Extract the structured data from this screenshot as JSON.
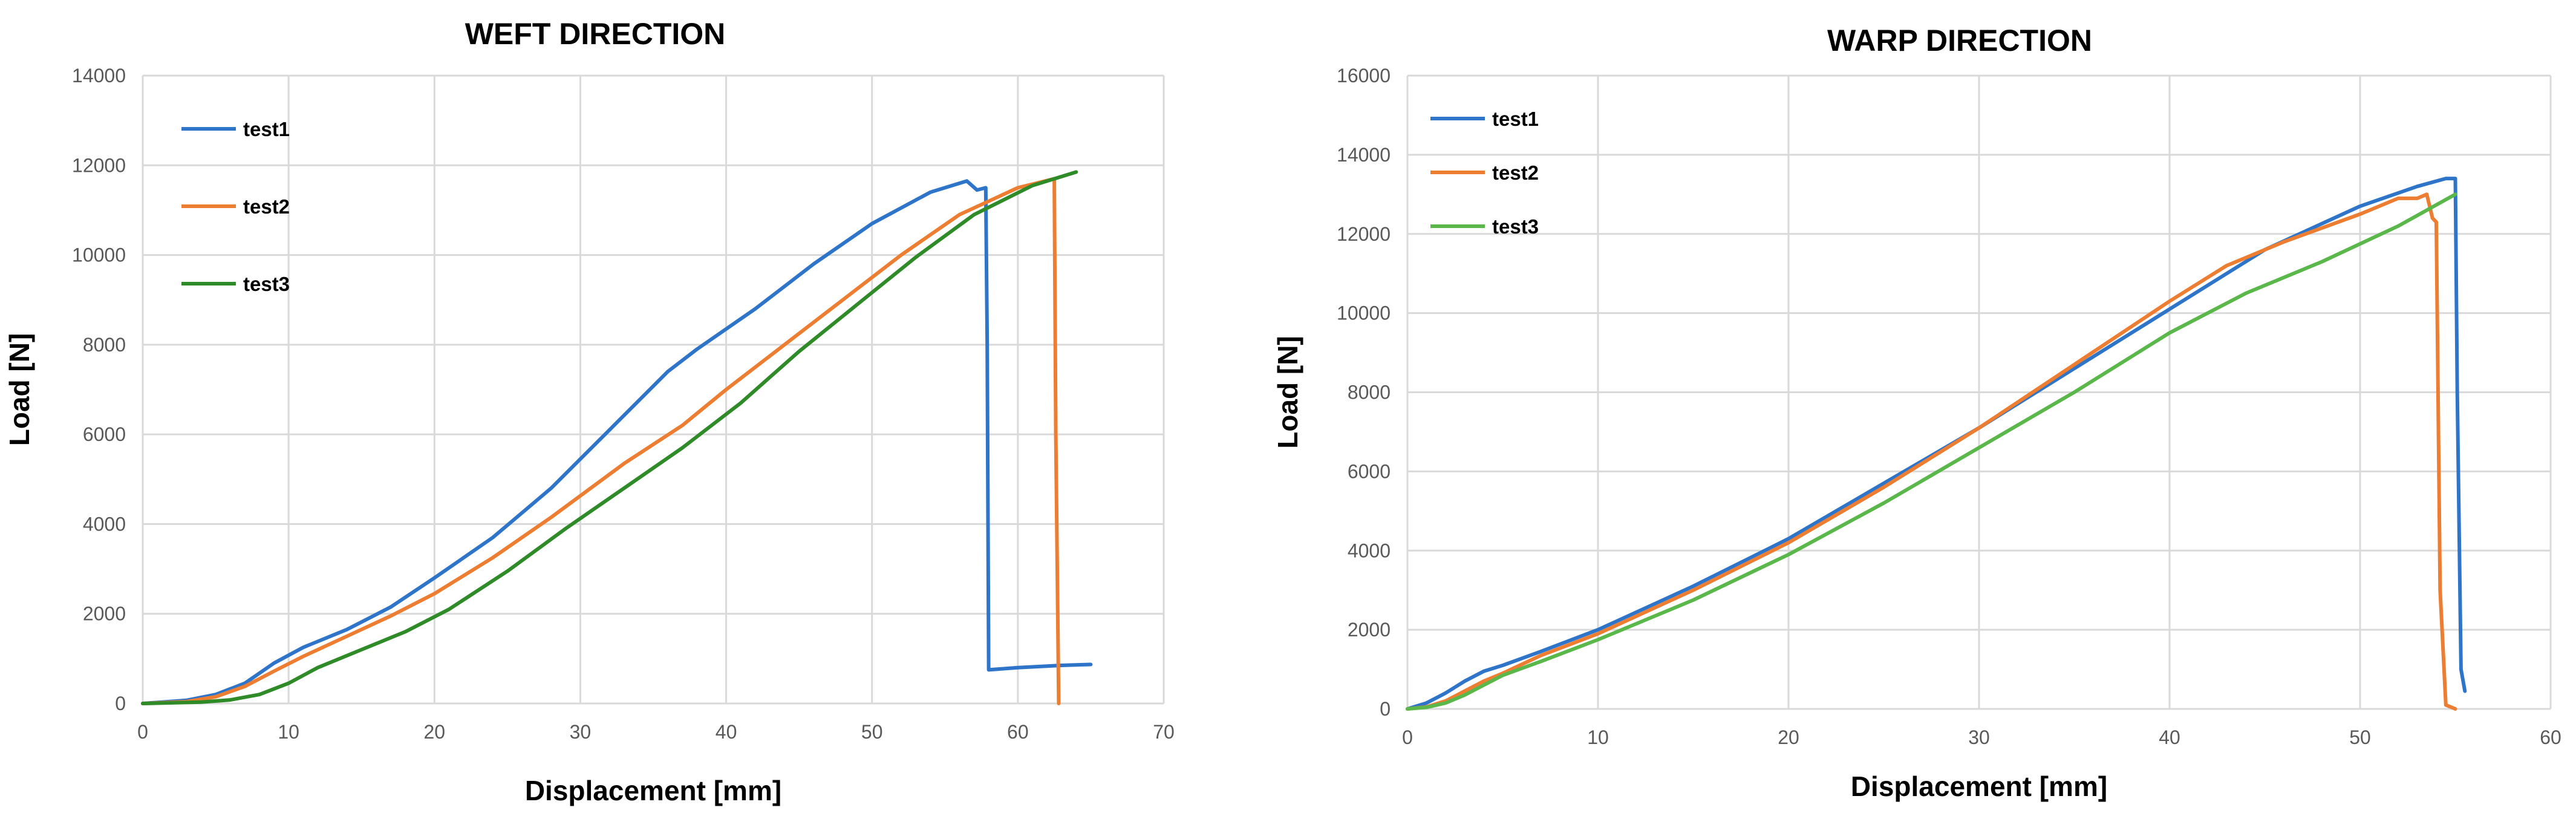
{
  "chart_data": [
    {
      "type": "line",
      "title": "WEFT DIRECTION",
      "xlabel": "Displacement [mm]",
      "ylabel": "Load [N]",
      "xlim": [
        0,
        70
      ],
      "ylim": [
        0,
        14000
      ],
      "xticks": [
        0,
        10,
        20,
        30,
        40,
        50,
        60,
        70
      ],
      "yticks": [
        0,
        2000,
        4000,
        6000,
        8000,
        10000,
        12000,
        14000
      ],
      "grid": true,
      "legend_position": "top-left",
      "series": [
        {
          "name": "test1",
          "color": "#2e75c9",
          "x": [
            0,
            3,
            5,
            7,
            9,
            11,
            14,
            17,
            20,
            24,
            28,
            32,
            36,
            38,
            42,
            46,
            50,
            54,
            56.5,
            57.2,
            57.8,
            57.9,
            58.0,
            60,
            63,
            65
          ],
          "y": [
            0,
            70,
            200,
            450,
            900,
            1250,
            1650,
            2150,
            2800,
            3700,
            4800,
            6100,
            7400,
            7900,
            8800,
            9800,
            10700,
            11400,
            11650,
            11450,
            11500,
            8000,
            750,
            800,
            850,
            870
          ]
        },
        {
          "name": "test2",
          "color": "#ed7d31",
          "x": [
            0,
            3,
            5,
            7,
            9,
            11,
            14,
            17,
            20,
            24,
            28,
            33,
            37,
            40,
            44,
            48,
            52,
            56,
            60,
            62.5,
            62.6,
            62.8
          ],
          "y": [
            0,
            40,
            150,
            380,
            720,
            1050,
            1500,
            1950,
            2450,
            3250,
            4150,
            5350,
            6200,
            7000,
            8000,
            9000,
            10000,
            10900,
            11500,
            11700,
            6000,
            0
          ]
        },
        {
          "name": "test3",
          "color": "#2e8b27",
          "x": [
            0,
            4,
            6,
            8,
            10,
            12,
            15,
            18,
            21,
            25,
            29,
            33,
            37,
            41,
            45,
            49,
            53,
            57,
            61,
            64
          ],
          "y": [
            0,
            30,
            80,
            200,
            450,
            800,
            1200,
            1600,
            2100,
            2950,
            3900,
            4800,
            5700,
            6700,
            7850,
            8900,
            9950,
            10900,
            11550,
            11850
          ]
        }
      ]
    },
    {
      "type": "line",
      "title": "WARP DIRECTION",
      "xlabel": "Displacement [mm]",
      "ylabel": "Load [N]",
      "xlim": [
        0,
        60
      ],
      "ylim": [
        0,
        16000
      ],
      "xticks": [
        0,
        10,
        20,
        30,
        40,
        50,
        60
      ],
      "yticks": [
        0,
        2000,
        4000,
        6000,
        8000,
        10000,
        12000,
        14000,
        16000
      ],
      "grid": true,
      "legend_position": "top-left",
      "series": [
        {
          "name": "test1",
          "color": "#2e75c9",
          "x": [
            0,
            1,
            2,
            3,
            4,
            5,
            7,
            10,
            15,
            20,
            25,
            30,
            35,
            40,
            45,
            50,
            53,
            54.5,
            55,
            55.1,
            55.3,
            55.5
          ],
          "y": [
            0,
            150,
            400,
            700,
            950,
            1100,
            1450,
            2000,
            3100,
            4300,
            5700,
            7100,
            8600,
            10100,
            11600,
            12700,
            13200,
            13400,
            13400,
            8000,
            1000,
            450
          ]
        },
        {
          "name": "test2",
          "color": "#ed7d31",
          "x": [
            0,
            1,
            2,
            3,
            4,
            5,
            7,
            10,
            15,
            20,
            25,
            30,
            35,
            40,
            43,
            46,
            50,
            52,
            53,
            53.5,
            53.8,
            54,
            54.2,
            54.5,
            55
          ],
          "y": [
            0,
            50,
            200,
            450,
            700,
            900,
            1350,
            1900,
            3000,
            4200,
            5600,
            7100,
            8700,
            10300,
            11200,
            11800,
            12500,
            12900,
            12900,
            13000,
            12400,
            12300,
            3000,
            100,
            0
          ]
        },
        {
          "name": "test3",
          "color": "#5ab84b",
          "x": [
            0,
            1,
            2,
            3,
            4,
            5,
            7,
            10,
            15,
            20,
            25,
            30,
            35,
            40,
            44,
            48,
            52,
            55
          ],
          "y": [
            0,
            40,
            150,
            350,
            600,
            850,
            1200,
            1750,
            2750,
            3900,
            5200,
            6600,
            8000,
            9500,
            10500,
            11300,
            12200,
            13000
          ]
        }
      ]
    }
  ]
}
